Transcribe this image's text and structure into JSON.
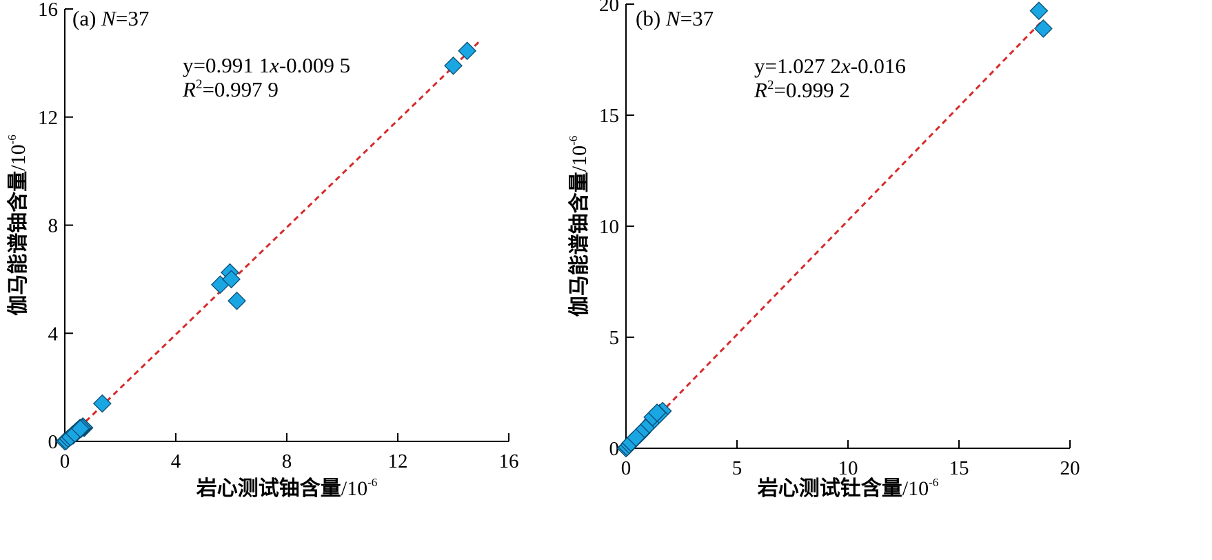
{
  "chart_data": [
    {
      "type": "scatter",
      "panel_label": "(a)",
      "n_label": "N",
      "n_eq": "=37",
      "equation_parts": [
        "y=0.991 1",
        "x",
        "-0.009 5"
      ],
      "r2_parts": [
        "R",
        "2",
        "=0.997 9"
      ],
      "xlabel": "岩心测试铀含量",
      "xunit": "/10",
      "xunit_exp": "-6",
      "ylabel": "伽马能谱铀含量",
      "yunit": "/10",
      "yunit_exp": "-6",
      "xlim": [
        0,
        16
      ],
      "ylim": [
        0,
        16
      ],
      "xticks": [
        0,
        4,
        8,
        12,
        16
      ],
      "yticks": [
        0,
        4,
        8,
        12,
        16
      ],
      "fit": {
        "slope": 0.9911,
        "intercept": -0.0095,
        "x_range": [
          0,
          15
        ]
      },
      "marker_color": "#1aa6e3",
      "line_color": "#d62b2b",
      "points": [
        [
          0.0,
          0.0
        ],
        [
          0.08,
          0.05
        ],
        [
          0.15,
          0.12
        ],
        [
          0.22,
          0.18
        ],
        [
          0.28,
          0.25
        ],
        [
          0.35,
          0.3
        ],
        [
          0.42,
          0.38
        ],
        [
          0.5,
          0.45
        ],
        [
          0.55,
          0.5
        ],
        [
          0.65,
          0.55
        ],
        [
          0.7,
          0.5
        ],
        [
          0.1,
          0.08
        ],
        [
          0.3,
          0.22
        ],
        [
          0.45,
          0.35
        ],
        [
          0.6,
          0.48
        ],
        [
          0.18,
          0.15
        ],
        [
          0.38,
          0.32
        ],
        [
          0.52,
          0.42
        ],
        [
          0.25,
          0.2
        ],
        [
          0.05,
          0.02
        ],
        [
          0.12,
          0.1
        ],
        [
          0.32,
          0.28
        ],
        [
          0.48,
          0.4
        ],
        [
          0.58,
          0.46
        ],
        [
          0.68,
          0.52
        ],
        [
          0.4,
          0.36
        ],
        [
          0.2,
          0.16
        ],
        [
          0.62,
          0.5
        ],
        [
          1.35,
          1.4
        ],
        [
          5.6,
          5.8
        ],
        [
          5.95,
          6.25
        ],
        [
          6.0,
          6.0
        ],
        [
          6.2,
          5.2
        ],
        [
          14.0,
          13.9
        ],
        [
          14.5,
          14.45
        ],
        [
          0.36,
          0.29
        ],
        [
          0.56,
          0.47
        ]
      ]
    },
    {
      "type": "scatter",
      "panel_label": "(b)",
      "n_label": "N",
      "n_eq": "=37",
      "equation_parts": [
        "y=1.027 2",
        "x",
        "-0.016"
      ],
      "r2_parts": [
        "R",
        "2",
        "=0.999 2"
      ],
      "xlabel": "岩心测试钍含量",
      "xunit": "/10",
      "xunit_exp": "-6",
      "ylabel": "伽马能谱铀含量",
      "yunit": "/10",
      "yunit_exp": "-6",
      "xlim": [
        0,
        20
      ],
      "ylim": [
        0,
        20
      ],
      "xticks": [
        0,
        5,
        10,
        15,
        20
      ],
      "yticks": [
        0,
        5,
        10,
        15,
        20
      ],
      "fit": {
        "slope": 1.0272,
        "intercept": -0.016,
        "x_range": [
          0,
          18.8
        ]
      },
      "marker_color": "#1aa6e3",
      "line_color": "#d62b2b",
      "points": [
        [
          0.0,
          0.0
        ],
        [
          0.1,
          0.1
        ],
        [
          0.18,
          0.2
        ],
        [
          0.25,
          0.28
        ],
        [
          0.32,
          0.35
        ],
        [
          0.4,
          0.42
        ],
        [
          0.48,
          0.5
        ],
        [
          0.55,
          0.55
        ],
        [
          0.62,
          0.62
        ],
        [
          0.7,
          0.7
        ],
        [
          0.78,
          0.8
        ],
        [
          0.85,
          0.88
        ],
        [
          0.92,
          0.95
        ],
        [
          1.0,
          1.02
        ],
        [
          1.08,
          1.1
        ],
        [
          1.15,
          1.2
        ],
        [
          1.22,
          1.28
        ],
        [
          1.3,
          1.35
        ],
        [
          1.38,
          1.42
        ],
        [
          1.45,
          1.5
        ],
        [
          1.52,
          1.58
        ],
        [
          1.6,
          1.62
        ],
        [
          1.65,
          1.68
        ],
        [
          0.05,
          0.05
        ],
        [
          0.15,
          0.15
        ],
        [
          0.35,
          0.38
        ],
        [
          0.58,
          0.6
        ],
        [
          0.82,
          0.85
        ],
        [
          1.05,
          1.08
        ],
        [
          1.28,
          1.3
        ],
        [
          1.5,
          1.52
        ],
        [
          0.22,
          0.25
        ],
        [
          0.45,
          0.48
        ],
        [
          1.2,
          1.4
        ],
        [
          1.4,
          1.6
        ],
        [
          18.6,
          19.7
        ],
        [
          18.8,
          18.9
        ]
      ]
    }
  ]
}
